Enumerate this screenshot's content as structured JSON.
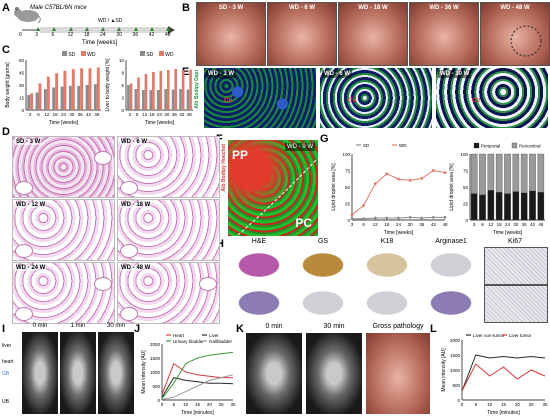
{
  "panels": {
    "A": "A",
    "B": "B",
    "C": "C",
    "D": "D",
    "E": "E",
    "F": "F",
    "G": "G",
    "H": "H",
    "I": "I",
    "J": "J",
    "K": "K",
    "L": "L"
  },
  "a": {
    "mouse_label": "Male C57BL/6N mice",
    "diet_label": "WD / ▲SD",
    "ticks": [
      "0",
      "3",
      "6",
      "12",
      "18",
      "24",
      "30",
      "36",
      "42",
      "48"
    ],
    "xlabel": "Time [weeks]"
  },
  "b": {
    "images": [
      "SD - 3 W",
      "WD - 6 W",
      "WD - 18 W",
      "WD - 36 W",
      "WD - 48 W"
    ]
  },
  "c": {
    "legend": [
      "SD",
      "WD"
    ],
    "colors": {
      "sd": "#8c8c8c",
      "wd": "#e07a6b"
    },
    "chart_data": [
      {
        "type": "bar",
        "ylabel": "Body weight [grams]",
        "xlabel": "Time [weeks]",
        "categories": [
          "3",
          "6",
          "12",
          "18",
          "24",
          "30",
          "36",
          "42",
          "48"
        ],
        "ylim": [
          0,
          60
        ],
        "series": [
          {
            "name": "SD",
            "values": [
              18,
              21,
              25,
              27,
              28,
              29,
              29,
              30,
              31
            ]
          },
          {
            "name": "WD",
            "values": [
              20,
              32,
              40,
              44,
              47,
              49,
              50,
              50,
              51
            ]
          }
        ]
      },
      {
        "type": "bar",
        "ylabel": "Liver to body weight [%]",
        "xlabel": "Time [weeks]",
        "categories": [
          "3",
          "6",
          "12",
          "18",
          "24",
          "30",
          "36",
          "42",
          "48"
        ],
        "ylim": [
          0,
          10
        ],
        "series": [
          {
            "name": "SD",
            "values": [
              5,
              4.2,
              4,
              4,
              4,
              4.2,
              4.1,
              4.2,
              4.1
            ]
          },
          {
            "name": "WD",
            "values": [
              5.3,
              6.5,
              7.2,
              7.6,
              7.8,
              8,
              8.2,
              8,
              8.1
            ]
          }
        ]
      }
    ]
  },
  "d": {
    "tiles": [
      {
        "title": "SD - 3 W",
        "labels": [
          "CV",
          "PV"
        ]
      },
      {
        "title": "WD - 6 W",
        "labels": [
          "PV"
        ]
      },
      {
        "title": "WD - 12 W",
        "labels": [
          "CV"
        ]
      },
      {
        "title": "WD - 18 W",
        "labels": [
          "PV"
        ]
      },
      {
        "title": "WD - 24 W",
        "labels": [
          "CV",
          "PV"
        ]
      },
      {
        "title": "WD - 48 W",
        "labels": [
          "CV",
          "PV"
        ]
      }
    ]
  },
  "e": {
    "titles": [
      "WD - 3 W",
      "WD - 6 W",
      "WD - 30 W"
    ],
    "side_label": "Alb Bodipy Dapi",
    "mark": "CV"
  },
  "f": {
    "title": "WD - 9 W",
    "pp": "PP",
    "pc": "PC",
    "side_label": "Alb Bodipy Hoechst"
  },
  "g": {
    "legend": [
      "SD",
      "WD"
    ],
    "legend2": [
      "Periportal",
      "Pericentral"
    ],
    "chart_data": [
      {
        "type": "line",
        "ylabel": "Lipid droplet area [%]",
        "xlabel": "Time [weeks]",
        "x": [
          "3",
          "6",
          "12",
          "18",
          "24",
          "30",
          "36",
          "42",
          "48"
        ],
        "ylim": [
          0,
          100
        ],
        "series": [
          {
            "name": "SD",
            "values": [
              2,
              2,
              3,
              3,
              3,
              4,
              3,
              4,
              4
            ]
          },
          {
            "name": "WD",
            "values": [
              8,
              22,
              55,
              70,
              62,
              60,
              63,
              75,
              72
            ]
          }
        ]
      },
      {
        "type": "bar",
        "ylabel": "Lipid droplet area [%]",
        "xlabel": "Time [weeks]",
        "categories": [
          "3",
          "6",
          "12",
          "18",
          "24",
          "30",
          "36",
          "42",
          "48"
        ],
        "ylim": [
          0,
          100
        ],
        "series": [
          {
            "name": "Periportal",
            "values": [
              40,
              38,
              45,
              42,
              40,
              43,
              41,
              44,
              42
            ]
          },
          {
            "name": "Pericentral",
            "values": [
              60,
              62,
              55,
              58,
              60,
              57,
              59,
              56,
              58
            ]
          }
        ]
      }
    ]
  },
  "h": {
    "headers": [
      "H&E",
      "GS",
      "K18",
      "Arginase1",
      "Ki67"
    ]
  },
  "i": {
    "times": [
      "0 min",
      "1 min",
      "30 min"
    ],
    "side": [
      "liver",
      "heart",
      "GB",
      "UB"
    ]
  },
  "j": {
    "legend": [
      "Heart",
      "Liver",
      "Urinary bladder",
      "Gallbladder"
    ],
    "colors": [
      "#d43a3a",
      "#2a2a2a",
      "#3a9a3a",
      "#9a9a9a"
    ],
    "chart_data": {
      "type": "line",
      "ylabel": "Mean intensity [AU]",
      "xlabel": "Time [minutes]",
      "x": [
        0,
        5,
        10,
        15,
        20,
        25,
        30
      ],
      "ylim": [
        0,
        2000
      ],
      "series": [
        {
          "name": "Heart",
          "values": [
            200,
            1300,
            1000,
            900,
            850,
            800,
            800
          ]
        },
        {
          "name": "Liver",
          "values": [
            100,
            800,
            700,
            650,
            600,
            600,
            580
          ]
        },
        {
          "name": "Urinary bladder",
          "values": [
            50,
            600,
            1300,
            1500,
            1600,
            1650,
            1700
          ]
        },
        {
          "name": "Gallbladder",
          "values": [
            20,
            100,
            300,
            500,
            700,
            800,
            900
          ]
        }
      ]
    }
  },
  "k": {
    "times": [
      "0 min",
      "30 min",
      "Gross pathology"
    ]
  },
  "l": {
    "legend": [
      "Liver non-tumor",
      "Liver tumor"
    ],
    "chart_data": {
      "type": "line",
      "ylabel": "Mean intensity [AU]",
      "xlabel": "Time [minutes]",
      "x": [
        0,
        5,
        10,
        15,
        20,
        25,
        30
      ],
      "ylim": [
        0,
        2000
      ],
      "series": [
        {
          "name": "Liver non-tumor",
          "values": [
            300,
            1500,
            1400,
            1450,
            1400,
            1450,
            1400
          ]
        },
        {
          "name": "Liver tumor",
          "values": [
            300,
            1200,
            800,
            1100,
            700,
            1000,
            800
          ]
        }
      ]
    }
  }
}
